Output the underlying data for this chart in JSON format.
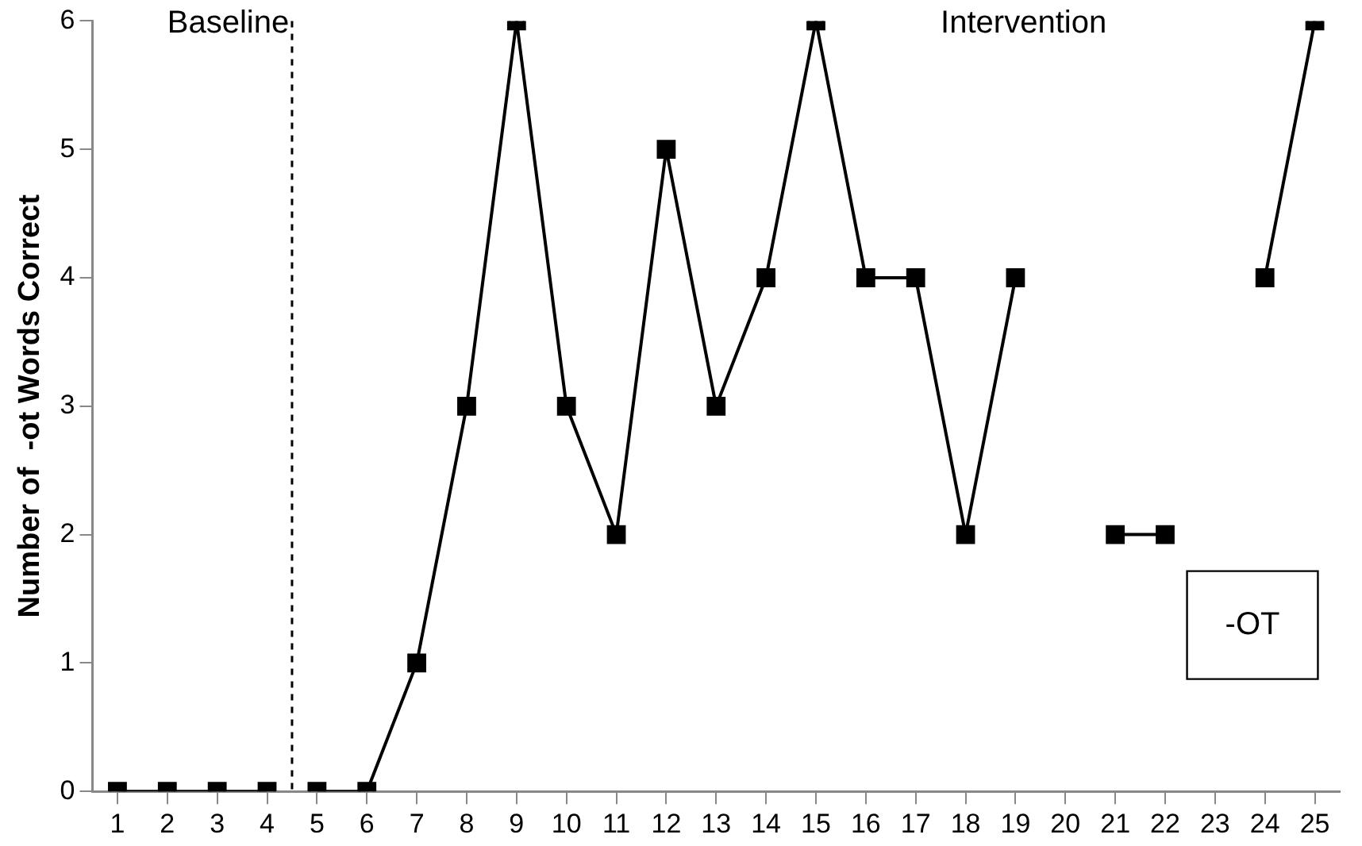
{
  "chart_data": {
    "type": "line",
    "ylabel": "Number of  -ot Words Correct",
    "xlim": [
      0.5,
      25.5
    ],
    "xticks": [
      1,
      2,
      3,
      4,
      5,
      6,
      7,
      8,
      9,
      10,
      11,
      12,
      13,
      14,
      15,
      16,
      17,
      18,
      19,
      20,
      21,
      22,
      23,
      24,
      25
    ],
    "ylim": [
      0,
      6
    ],
    "yticks": [
      0,
      1,
      2,
      3,
      4,
      5,
      6
    ],
    "series": [
      {
        "color": "#000000",
        "x": [
          1,
          2,
          3,
          4
        ],
        "values": [
          0,
          0,
          0,
          0
        ]
      },
      {
        "color": "#000000",
        "x": [
          5,
          6,
          7,
          8,
          9,
          10,
          11,
          12,
          13,
          14,
          15,
          16,
          17,
          18,
          19,
          20,
          21,
          22,
          23,
          24,
          25
        ],
        "values": [
          0,
          0,
          1,
          3,
          6,
          3,
          2,
          5,
          3,
          4,
          6,
          4,
          4,
          2,
          4,
          null,
          2,
          2,
          null,
          4,
          6
        ]
      }
    ],
    "ref_lines": [
      {
        "axis": "x",
        "value": 4.5,
        "color": "#000000",
        "line_style": "dashed"
      }
    ],
    "annotations": [
      "Baseline",
      "Intervention",
      "-OT"
    ],
    "marker": "square",
    "line_style": "solid",
    "grid": false,
    "legend": false
  }
}
